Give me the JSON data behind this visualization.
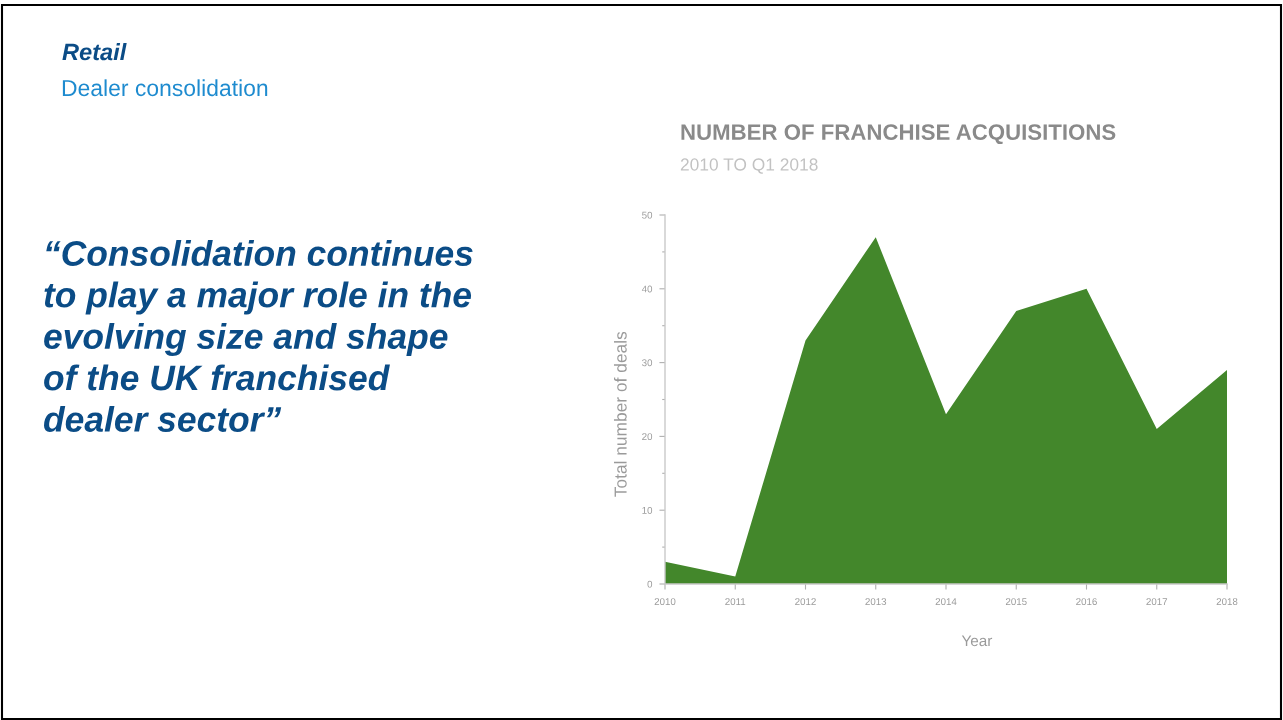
{
  "chart_data": {
    "type": "area",
    "title": "NUMBER OF FRANCHISE ACQUISITIONS",
    "subtitle": "2010 TO Q1 2018",
    "xlabel": "Year",
    "ylabel": "Total number of deals",
    "annotations": [
      "Retail",
      "Dealer consolidation",
      "“Consolidation continues\nto play a major role in the\nevolving size and shape\nof the UK franchised\ndealer sector”"
    ],
    "x": [
      2010,
      2011,
      2012,
      2013,
      2014,
      2015,
      2016,
      2017,
      2018
    ],
    "values": [
      3,
      1,
      33,
      47,
      23,
      37,
      40,
      21,
      29
    ],
    "color": "#43872b",
    "xlim": [
      2010,
      2018
    ],
    "xticks": [
      2010,
      2011,
      2012,
      2013,
      2014,
      2015,
      2016,
      2017,
      2018
    ],
    "ylim": [
      0,
      50
    ],
    "yticks": [
      0,
      {
        "value": 5,
        "label": null
      },
      10,
      {
        "value": 15,
        "label": null
      },
      20,
      {
        "value": 25,
        "label": null
      },
      30,
      {
        "value": 35,
        "label": null
      },
      40,
      {
        "value": 45,
        "label": null
      },
      50
    ],
    "grid": false
  }
}
